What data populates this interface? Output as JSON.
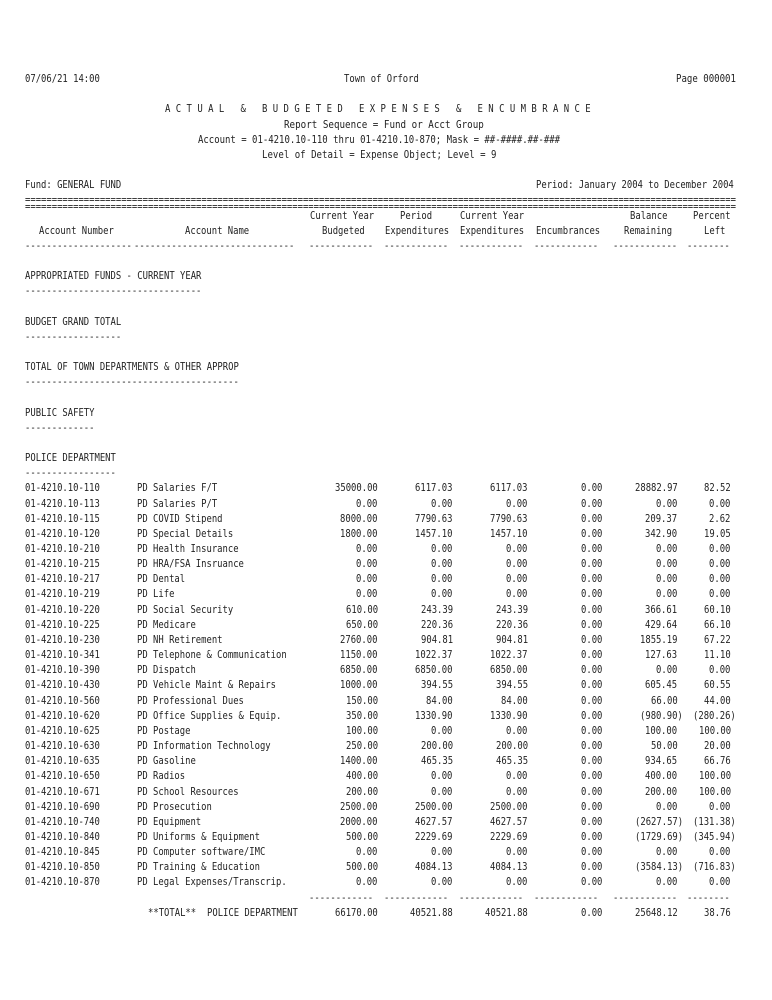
{
  "page": {
    "background": "#ffffff",
    "text_color": "#232323"
  },
  "header": {
    "date": "07/06/21 14:00",
    "town": "Town of Orford",
    "page_label": "Page 000001"
  },
  "title": "A C T U A L   &   B U D G E T E D   E X P E N S E S   &   E N C U M B R A N C E",
  "params": [
    "Report Sequence = Fund or Acct Group",
    "Account = 01-4210.10-110 thru 01-4210.10-870; Mask = ##-####.##-###",
    "Level of Detail = Expense Object; Level = 9"
  ],
  "fund_label": "Fund: GENERAL FUND",
  "period_label": "Period: January 2004 to December 2004",
  "columns": {
    "top": [
      "Current Year",
      "Period",
      "Current Year",
      "Balance",
      "Percent"
    ],
    "bottom": [
      "Account Number",
      "Account Name",
      "Budgeted",
      "Expenditures",
      "Expenditures",
      "Encumbrances",
      "Remaining",
      "Left"
    ]
  },
  "sections": [
    "APPROPRIATED FUNDS - CURRENT YEAR",
    "BUDGET GRAND TOTAL",
    "TOTAL OF TOWN DEPARTMENTS & OTHER APPROP",
    "PUBLIC SAFETY",
    "POLICE DEPARTMENT"
  ],
  "rows": [
    [
      "01-4210.10-110",
      "PD Salaries F/T",
      "35000.00",
      "6117.03",
      "6117.03",
      "0.00",
      "28882.97",
      "82.52"
    ],
    [
      "01-4210.10-113",
      "PD Salaries P/T",
      "0.00",
      "0.00",
      "0.00",
      "0.00",
      "0.00",
      "0.00"
    ],
    [
      "01-4210.10-115",
      "PD COVID Stipend",
      "8000.00",
      "7790.63",
      "7790.63",
      "0.00",
      "209.37",
      "2.62"
    ],
    [
      "01-4210.10-120",
      "PD Special Details",
      "1800.00",
      "1457.10",
      "1457.10",
      "0.00",
      "342.90",
      "19.05"
    ],
    [
      "01-4210.10-210",
      "PD Health Insurance",
      "0.00",
      "0.00",
      "0.00",
      "0.00",
      "0.00",
      "0.00"
    ],
    [
      "01-4210.10-215",
      "PD HRA/FSA Insruance",
      "0.00",
      "0.00",
      "0.00",
      "0.00",
      "0.00",
      "0.00"
    ],
    [
      "01-4210.10-217",
      "PD Dental",
      "0.00",
      "0.00",
      "0.00",
      "0.00",
      "0.00",
      "0.00"
    ],
    [
      "01-4210.10-219",
      "PD Life",
      "0.00",
      "0.00",
      "0.00",
      "0.00",
      "0.00",
      "0.00"
    ],
    [
      "01-4210.10-220",
      "PD Social Security",
      "610.00",
      "243.39",
      "243.39",
      "0.00",
      "366.61",
      "60.10"
    ],
    [
      "01-4210.10-225",
      "PD Medicare",
      "650.00",
      "220.36",
      "220.36",
      "0.00",
      "429.64",
      "66.10"
    ],
    [
      "01-4210.10-230",
      "PD NH Retirement",
      "2760.00",
      "904.81",
      "904.81",
      "0.00",
      "1855.19",
      "67.22"
    ],
    [
      "01-4210.10-341",
      "PD Telephone & Communication",
      "1150.00",
      "1022.37",
      "1022.37",
      "0.00",
      "127.63",
      "11.10"
    ],
    [
      "01-4210.10-390",
      "PD Dispatch",
      "6850.00",
      "6850.00",
      "6850.00",
      "0.00",
      "0.00",
      "0.00"
    ],
    [
      "01-4210.10-430",
      "PD Vehicle Maint & Repairs",
      "1000.00",
      "394.55",
      "394.55",
      "0.00",
      "605.45",
      "60.55"
    ],
    [
      "01-4210.10-560",
      "PD Professional Dues",
      "150.00",
      "84.00",
      "84.00",
      "0.00",
      "66.00",
      "44.00"
    ],
    [
      "01-4210.10-620",
      "PD Office Supplies & Equip.",
      "350.00",
      "1330.90",
      "1330.90",
      "0.00",
      "(980.90)",
      "(280.26)"
    ],
    [
      "01-4210.10-625",
      "PD Postage",
      "100.00",
      "0.00",
      "0.00",
      "0.00",
      "100.00",
      "100.00"
    ],
    [
      "01-4210.10-630",
      "PD Information Technology",
      "250.00",
      "200.00",
      "200.00",
      "0.00",
      "50.00",
      "20.00"
    ],
    [
      "01-4210.10-635",
      "PD Gasoline",
      "1400.00",
      "465.35",
      "465.35",
      "0.00",
      "934.65",
      "66.76"
    ],
    [
      "01-4210.10-650",
      "PD Radios",
      "400.00",
      "0.00",
      "0.00",
      "0.00",
      "400.00",
      "100.00"
    ],
    [
      "01-4210.10-671",
      "PD School Resources",
      "200.00",
      "0.00",
      "0.00",
      "0.00",
      "200.00",
      "100.00"
    ],
    [
      "01-4210.10-690",
      "PD Prosecution",
      "2500.00",
      "2500.00",
      "2500.00",
      "0.00",
      "0.00",
      "0.00"
    ],
    [
      "01-4210.10-740",
      "PD Equipment",
      "2000.00",
      "4627.57",
      "4627.57",
      "0.00",
      "(2627.57)",
      "(131.38)"
    ],
    [
      "01-4210.10-840",
      "PD Uniforms & Equipment",
      "500.00",
      "2229.69",
      "2229.69",
      "0.00",
      "(1729.69)",
      "(345.94)"
    ],
    [
      "01-4210.10-845",
      "PD Computer software/IMC",
      "0.00",
      "0.00",
      "0.00",
      "0.00",
      "0.00",
      "0.00"
    ],
    [
      "01-4210.10-850",
      "PD Training & Education",
      "500.00",
      "4084.13",
      "4084.13",
      "0.00",
      "(3584.13)",
      "(716.83)"
    ],
    [
      "01-4210.10-870",
      "PD Legal Expenses/Transcrip.",
      "0.00",
      "0.00",
      "0.00",
      "0.00",
      "0.00",
      "0.00"
    ]
  ],
  "total": {
    "label": "**TOTAL**",
    "name": "POLICE DEPARTMENT",
    "values": [
      "66170.00",
      "40521.88",
      "40521.88",
      "0.00",
      "25648.12",
      "38.76"
    ]
  }
}
